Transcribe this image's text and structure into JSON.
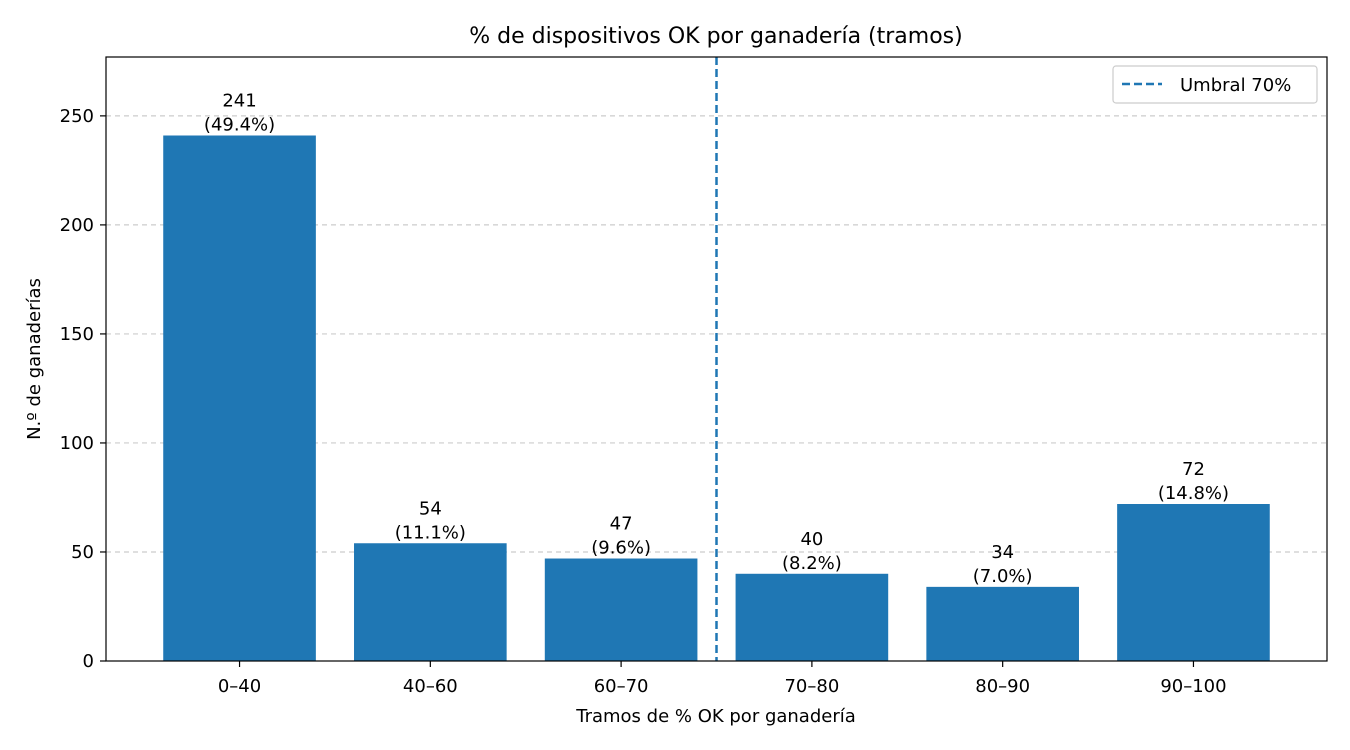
{
  "chart_data": {
    "type": "bar",
    "title": "% de dispositivos OK por ganadería (tramos)",
    "xlabel": "Tramos de % OK por ganadería",
    "ylabel": "N.º de ganaderías",
    "categories": [
      "0–40",
      "40–60",
      "60–70",
      "70–80",
      "80–90",
      "90–100"
    ],
    "values": [
      241,
      54,
      47,
      40,
      34,
      72
    ],
    "percent_labels": [
      "(49.4%)",
      "(11.1%)",
      "(9.6%)",
      "(8.2%)",
      "(7.0%)",
      "(14.8%)"
    ],
    "value_labels": [
      "241",
      "54",
      "47",
      "40",
      "34",
      "72"
    ],
    "ylim": [
      0,
      277
    ],
    "yticks": [
      0,
      50,
      100,
      150,
      200,
      250
    ],
    "ytick_labels": [
      "0",
      "50",
      "100",
      "150",
      "200",
      "250"
    ],
    "grid": "y-dashed",
    "bar_color": "#1f77b4",
    "threshold": {
      "label": "Umbral 70%",
      "position_between": [
        "60–70",
        "70–80"
      ],
      "style": "dashed",
      "color": "#1f77b4"
    },
    "legend_placement": "top-right"
  }
}
